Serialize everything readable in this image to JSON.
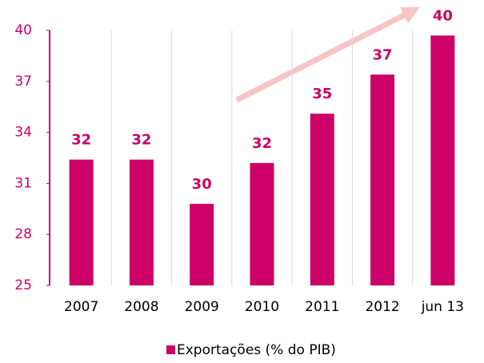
{
  "chart_data": {
    "type": "bar",
    "categories": [
      "2007",
      "2008",
      "2009",
      "2010",
      "2011",
      "2012",
      "jun 13"
    ],
    "series": [
      {
        "name": "Exportações (% do PIB)",
        "color": "#cc0066",
        "values": [
          32.4,
          32.4,
          29.8,
          32.2,
          35.1,
          37.4,
          39.7
        ],
        "value_labels": [
          "32",
          "32",
          "30",
          "32",
          "35",
          "37",
          "40"
        ]
      }
    ],
    "ylim": [
      25,
      40
    ],
    "yticks": [
      25,
      28,
      31,
      34,
      37,
      40
    ],
    "legend": "bottom"
  }
}
